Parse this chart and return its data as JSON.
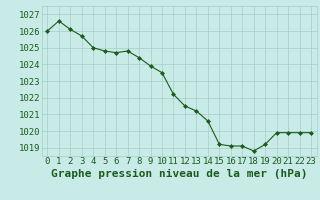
{
  "x": [
    0,
    1,
    2,
    3,
    4,
    5,
    6,
    7,
    8,
    9,
    10,
    11,
    12,
    13,
    14,
    15,
    16,
    17,
    18,
    19,
    20,
    21,
    22,
    23
  ],
  "y": [
    1026.0,
    1026.6,
    1026.1,
    1025.7,
    1025.0,
    1024.8,
    1024.7,
    1024.8,
    1024.4,
    1023.9,
    1023.5,
    1022.2,
    1021.5,
    1021.2,
    1020.6,
    1019.2,
    1019.1,
    1019.1,
    1018.8,
    1019.2,
    1019.9,
    1019.9,
    1019.9,
    1019.9
  ],
  "ylim": [
    1018.5,
    1027.5
  ],
  "yticks": [
    1019,
    1020,
    1021,
    1022,
    1023,
    1024,
    1025,
    1026,
    1027
  ],
  "xlabel": "Graphe pression niveau de la mer (hPa)",
  "line_color": "#1a5c1a",
  "marker_color": "#1a5c1a",
  "bg_color": "#c8ebe8",
  "grid_color": "#a8ccc8",
  "text_color": "#1a5c1a",
  "xlabel_color": "#1a5c1a",
  "label_fontsize": 7,
  "xlabel_fontsize": 8,
  "tick_fontsize": 6.5
}
